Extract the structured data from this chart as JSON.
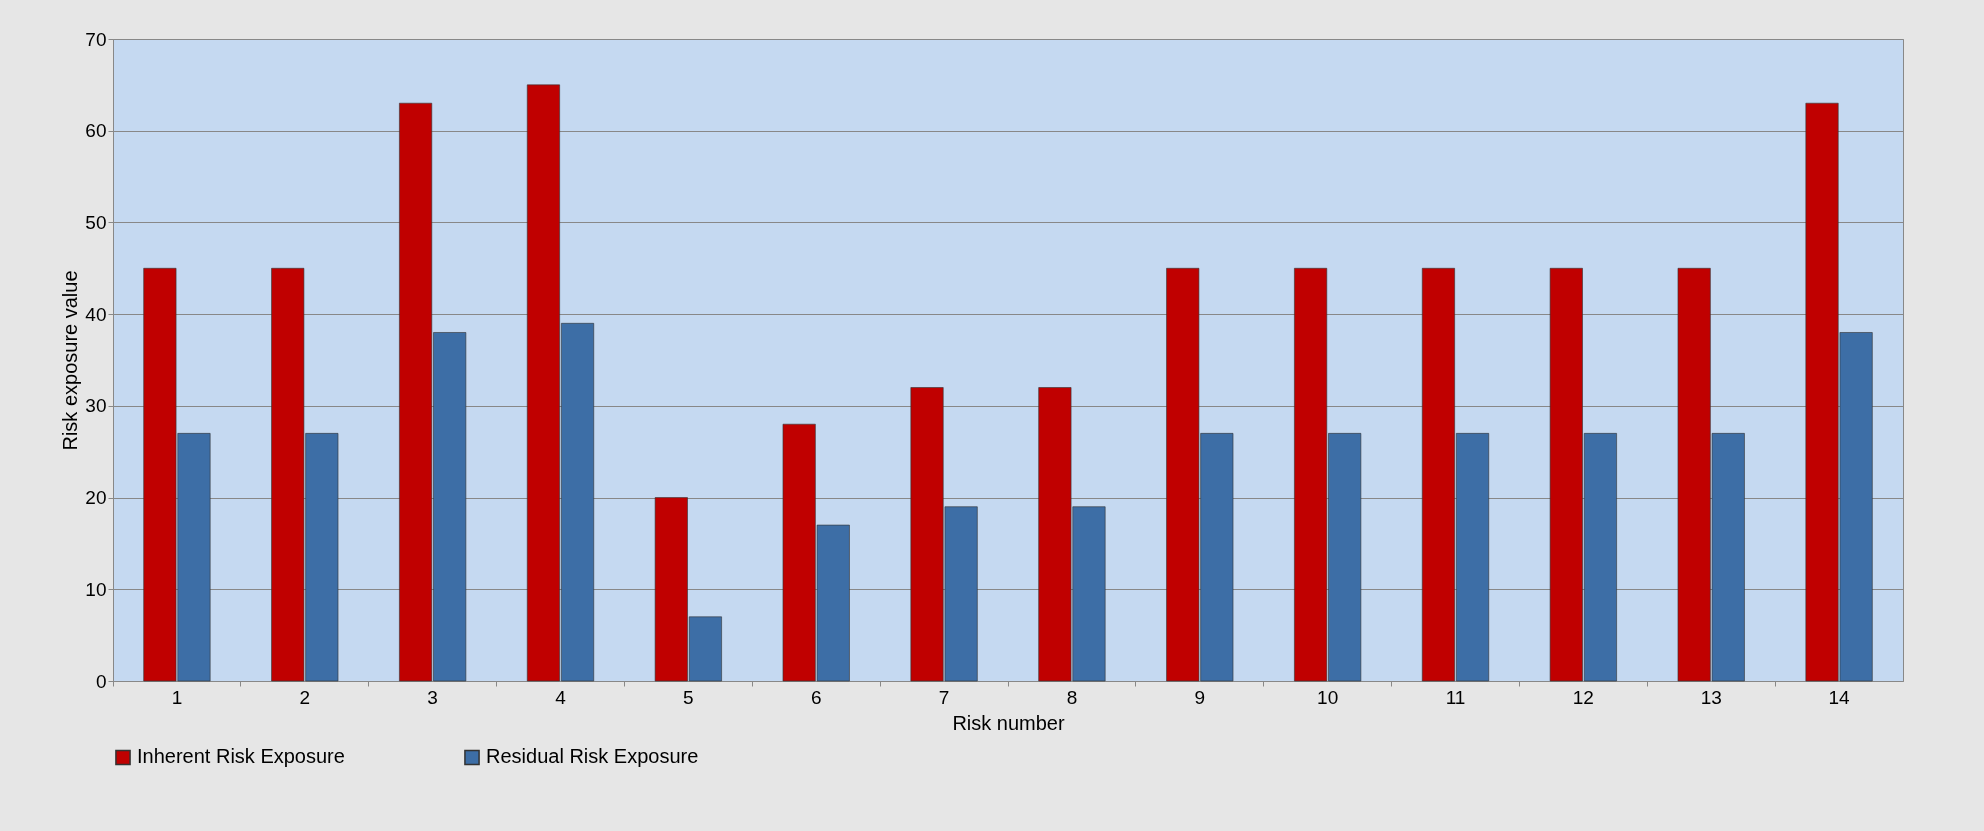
{
  "chart_data": {
    "type": "bar",
    "xlabel": "Risk number",
    "ylabel": "Risk exposure value",
    "categories": [
      "1",
      "2",
      "3",
      "4",
      "5",
      "6",
      "7",
      "8",
      "9",
      "10",
      "11",
      "12",
      "13",
      "14"
    ],
    "series": [
      {
        "name": "Inherent Risk  Exposure",
        "color": "#c00000",
        "values": [
          45,
          45,
          63,
          65,
          20,
          28,
          32,
          32,
          45,
          45,
          45,
          45,
          45,
          63
        ]
      },
      {
        "name": "Residual Risk Exposure",
        "color": "#3d6ea6",
        "values": [
          27,
          27,
          38,
          39,
          7,
          17,
          19,
          19,
          27,
          27,
          27,
          27,
          27,
          38
        ]
      }
    ],
    "ylim": [
      0,
      70
    ],
    "yticks": [
      0,
      10,
      20,
      30,
      40,
      50,
      60,
      70
    ],
    "grid": "y",
    "legend": "bottom"
  }
}
